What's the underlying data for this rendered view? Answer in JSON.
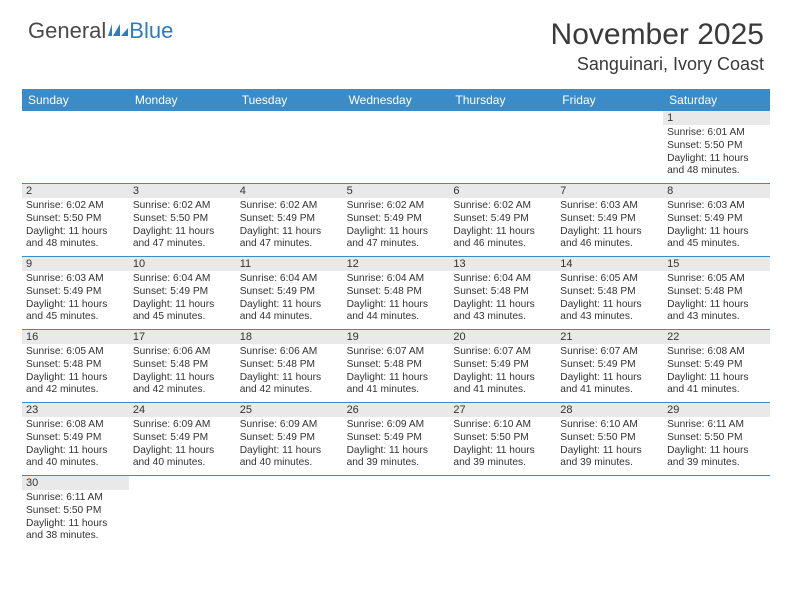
{
  "brand": {
    "part1": "General",
    "part2": "Blue"
  },
  "title": "November 2025",
  "location": "Sanguinari, Ivory Coast",
  "colors": {
    "header_bg": "#3b8bc8",
    "header_text": "#ffffff",
    "daynum_bg": "#e9e9e9",
    "border": "#3b8bc8",
    "text": "#333333",
    "page_bg": "#ffffff"
  },
  "daysOfWeek": [
    "Sunday",
    "Monday",
    "Tuesday",
    "Wednesday",
    "Thursday",
    "Friday",
    "Saturday"
  ],
  "weeks": [
    [
      null,
      null,
      null,
      null,
      null,
      null,
      {
        "n": "1",
        "sr": "6:01 AM",
        "ss": "5:50 PM",
        "dl": "11 hours and 48 minutes."
      }
    ],
    [
      {
        "n": "2",
        "sr": "6:02 AM",
        "ss": "5:50 PM",
        "dl": "11 hours and 48 minutes."
      },
      {
        "n": "3",
        "sr": "6:02 AM",
        "ss": "5:50 PM",
        "dl": "11 hours and 47 minutes."
      },
      {
        "n": "4",
        "sr": "6:02 AM",
        "ss": "5:49 PM",
        "dl": "11 hours and 47 minutes."
      },
      {
        "n": "5",
        "sr": "6:02 AM",
        "ss": "5:49 PM",
        "dl": "11 hours and 47 minutes."
      },
      {
        "n": "6",
        "sr": "6:02 AM",
        "ss": "5:49 PM",
        "dl": "11 hours and 46 minutes."
      },
      {
        "n": "7",
        "sr": "6:03 AM",
        "ss": "5:49 PM",
        "dl": "11 hours and 46 minutes."
      },
      {
        "n": "8",
        "sr": "6:03 AM",
        "ss": "5:49 PM",
        "dl": "11 hours and 45 minutes."
      }
    ],
    [
      {
        "n": "9",
        "sr": "6:03 AM",
        "ss": "5:49 PM",
        "dl": "11 hours and 45 minutes."
      },
      {
        "n": "10",
        "sr": "6:04 AM",
        "ss": "5:49 PM",
        "dl": "11 hours and 45 minutes."
      },
      {
        "n": "11",
        "sr": "6:04 AM",
        "ss": "5:49 PM",
        "dl": "11 hours and 44 minutes."
      },
      {
        "n": "12",
        "sr": "6:04 AM",
        "ss": "5:48 PM",
        "dl": "11 hours and 44 minutes."
      },
      {
        "n": "13",
        "sr": "6:04 AM",
        "ss": "5:48 PM",
        "dl": "11 hours and 43 minutes."
      },
      {
        "n": "14",
        "sr": "6:05 AM",
        "ss": "5:48 PM",
        "dl": "11 hours and 43 minutes."
      },
      {
        "n": "15",
        "sr": "6:05 AM",
        "ss": "5:48 PM",
        "dl": "11 hours and 43 minutes."
      }
    ],
    [
      {
        "n": "16",
        "sr": "6:05 AM",
        "ss": "5:48 PM",
        "dl": "11 hours and 42 minutes."
      },
      {
        "n": "17",
        "sr": "6:06 AM",
        "ss": "5:48 PM",
        "dl": "11 hours and 42 minutes."
      },
      {
        "n": "18",
        "sr": "6:06 AM",
        "ss": "5:48 PM",
        "dl": "11 hours and 42 minutes."
      },
      {
        "n": "19",
        "sr": "6:07 AM",
        "ss": "5:48 PM",
        "dl": "11 hours and 41 minutes."
      },
      {
        "n": "20",
        "sr": "6:07 AM",
        "ss": "5:49 PM",
        "dl": "11 hours and 41 minutes."
      },
      {
        "n": "21",
        "sr": "6:07 AM",
        "ss": "5:49 PM",
        "dl": "11 hours and 41 minutes."
      },
      {
        "n": "22",
        "sr": "6:08 AM",
        "ss": "5:49 PM",
        "dl": "11 hours and 41 minutes."
      }
    ],
    [
      {
        "n": "23",
        "sr": "6:08 AM",
        "ss": "5:49 PM",
        "dl": "11 hours and 40 minutes."
      },
      {
        "n": "24",
        "sr": "6:09 AM",
        "ss": "5:49 PM",
        "dl": "11 hours and 40 minutes."
      },
      {
        "n": "25",
        "sr": "6:09 AM",
        "ss": "5:49 PM",
        "dl": "11 hours and 40 minutes."
      },
      {
        "n": "26",
        "sr": "6:09 AM",
        "ss": "5:49 PM",
        "dl": "11 hours and 39 minutes."
      },
      {
        "n": "27",
        "sr": "6:10 AM",
        "ss": "5:50 PM",
        "dl": "11 hours and 39 minutes."
      },
      {
        "n": "28",
        "sr": "6:10 AM",
        "ss": "5:50 PM",
        "dl": "11 hours and 39 minutes."
      },
      {
        "n": "29",
        "sr": "6:11 AM",
        "ss": "5:50 PM",
        "dl": "11 hours and 39 minutes."
      }
    ],
    [
      {
        "n": "30",
        "sr": "6:11 AM",
        "ss": "5:50 PM",
        "dl": "11 hours and 38 minutes."
      },
      null,
      null,
      null,
      null,
      null,
      null
    ]
  ],
  "labels": {
    "sunrise": "Sunrise: ",
    "sunset": "Sunset: ",
    "daylight": "Daylight: "
  }
}
